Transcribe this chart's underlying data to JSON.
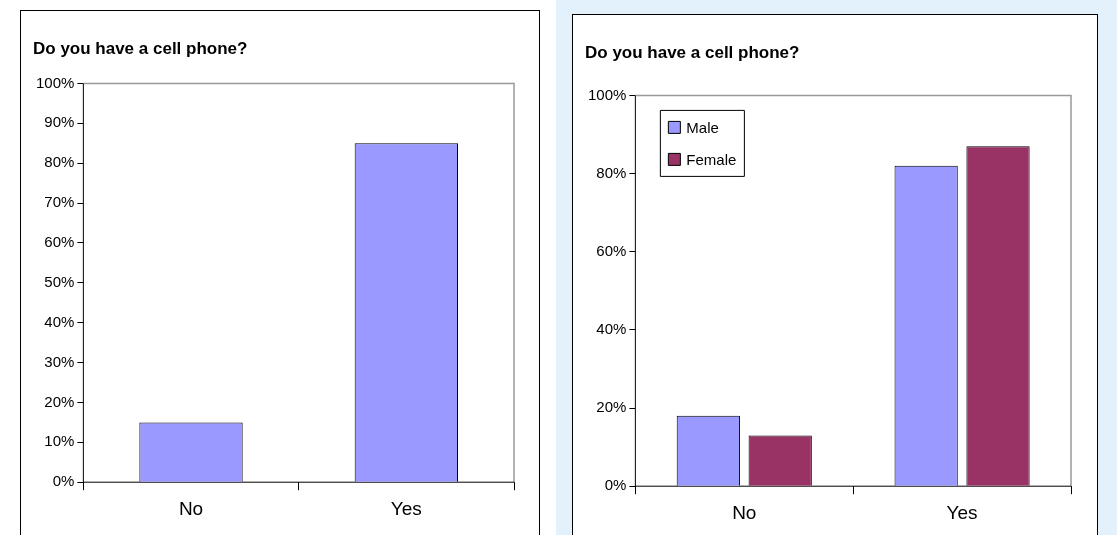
{
  "chart_data": [
    {
      "type": "bar",
      "title": "Do you have a cell phone?",
      "categories": [
        "No",
        "Yes"
      ],
      "values": [
        15,
        85
      ],
      "color": "#9999ff",
      "ylim": [
        0,
        100
      ],
      "yticks": [
        {
          "value": 0,
          "label": "0%"
        },
        {
          "value": 10,
          "label": "10%"
        },
        {
          "value": 20,
          "label": "20%"
        },
        {
          "value": 30,
          "label": "30%"
        },
        {
          "value": 40,
          "label": "40%"
        },
        {
          "value": 50,
          "label": "50%"
        },
        {
          "value": 60,
          "label": "60%"
        },
        {
          "value": 70,
          "label": "70%"
        },
        {
          "value": 80,
          "label": "80%"
        },
        {
          "value": 90,
          "label": "90%"
        },
        {
          "value": 100,
          "label": "100%"
        }
      ],
      "grid": false
    },
    {
      "type": "bar",
      "title": "Do you have a cell phone?",
      "categories": [
        "No",
        "Yes"
      ],
      "series": [
        {
          "name": "Male",
          "color": "#9999ff",
          "values": [
            18,
            82
          ]
        },
        {
          "name": "Female",
          "color": "#993366",
          "values": [
            13,
            87
          ]
        }
      ],
      "ylim": [
        0,
        100
      ],
      "yticks": [
        {
          "value": 0,
          "label": "0%"
        },
        {
          "value": 20,
          "label": "20%"
        },
        {
          "value": 40,
          "label": "40%"
        },
        {
          "value": 60,
          "label": "60%"
        },
        {
          "value": 80,
          "label": "80%"
        },
        {
          "value": 100,
          "label": "100%"
        }
      ],
      "grid": false,
      "legend": "top left"
    }
  ]
}
